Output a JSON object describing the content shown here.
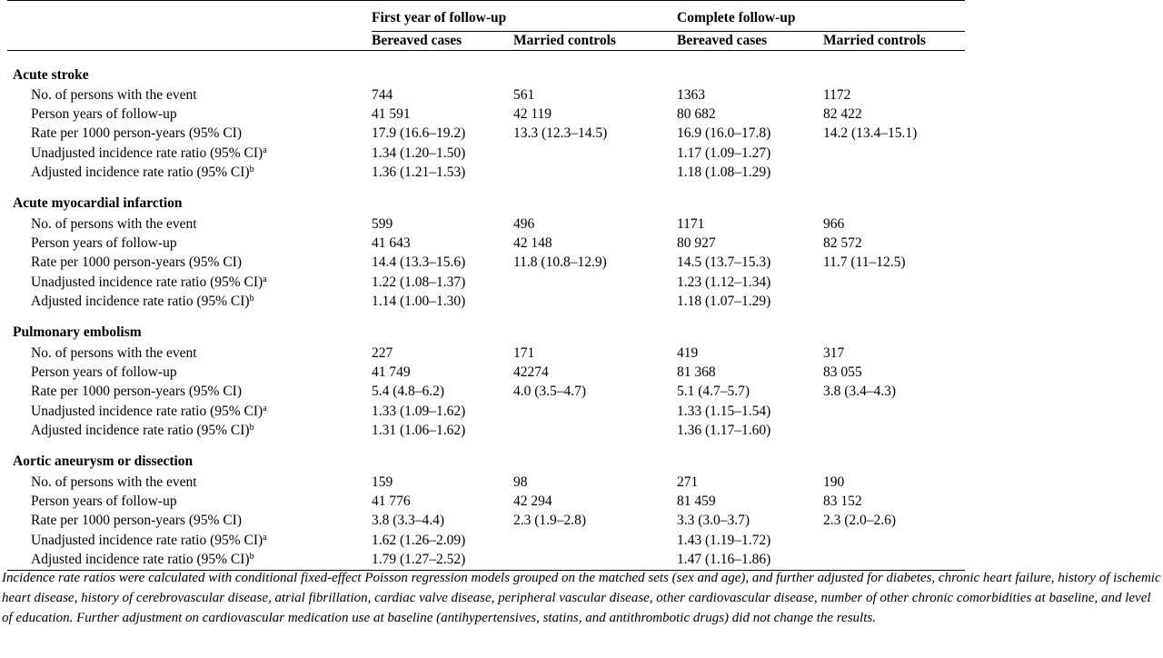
{
  "columns": {
    "group1": "First year of follow-up",
    "group2": "Complete follow-up",
    "bereaved": "Bereaved cases",
    "married": "Married controls"
  },
  "sections": [
    {
      "title": "Acute stroke",
      "rows": [
        {
          "label": "No. of persons with the event",
          "sup": "",
          "v": [
            "744",
            "561",
            "1363",
            "1172"
          ]
        },
        {
          "label": "Person years of follow-up",
          "sup": "",
          "v": [
            "41 591",
            "42 119",
            "80 682",
            "82 422"
          ]
        },
        {
          "label": "Rate per 1000 person-years (95% CI)",
          "sup": "",
          "v": [
            "17.9 (16.6–19.2)",
            "13.3 (12.3–14.5)",
            "16.9 (16.0–17.8)",
            "14.2 (13.4–15.1)"
          ]
        },
        {
          "label": "Unadjusted incidence rate ratio (95% CI)",
          "sup": "a",
          "v": [
            "1.34 (1.20–1.50)",
            "",
            "1.17 (1.09–1.27)",
            ""
          ]
        },
        {
          "label": "Adjusted incidence rate ratio (95% CI)",
          "sup": "b",
          "v": [
            "1.36 (1.21–1.53)",
            "",
            "1.18 (1.08–1.29)",
            ""
          ]
        }
      ]
    },
    {
      "title": "Acute myocardial infarction",
      "rows": [
        {
          "label": "No. of persons with the event",
          "sup": "",
          "v": [
            "599",
            "496",
            "1171",
            "966"
          ]
        },
        {
          "label": "Person years of follow-up",
          "sup": "",
          "v": [
            "41 643",
            "42 148",
            "80 927",
            "82 572"
          ]
        },
        {
          "label": "Rate per 1000 person-years (95% CI)",
          "sup": "",
          "v": [
            "14.4 (13.3–15.6)",
            "11.8 (10.8–12.9)",
            "14.5 (13.7–15.3)",
            "11.7 (11–12.5)"
          ]
        },
        {
          "label": "Unadjusted incidence rate ratio (95% CI)",
          "sup": "a",
          "v": [
            "1.22 (1.08–1.37)",
            "",
            "1.23 (1.12–1.34)",
            ""
          ]
        },
        {
          "label": "Adjusted incidence rate ratio (95% CI)",
          "sup": "b",
          "v": [
            "1.14 (1.00–1.30)",
            "",
            "1.18 (1.07–1.29)",
            ""
          ]
        }
      ]
    },
    {
      "title": "Pulmonary embolism",
      "rows": [
        {
          "label": "No. of persons with the event",
          "sup": "",
          "v": [
            "227",
            "171",
            "419",
            "317"
          ]
        },
        {
          "label": "Person years of follow-up",
          "sup": "",
          "v": [
            "41 749",
            "42274",
            "81 368",
            "83 055"
          ]
        },
        {
          "label": "Rate per 1000 person-years (95% CI)",
          "sup": "",
          "v": [
            "5.4 (4.8–6.2)",
            "4.0 (3.5–4.7)",
            "5.1 (4.7–5.7)",
            "3.8 (3.4–4.3)"
          ]
        },
        {
          "label": "Unadjusted incidence rate ratio (95% CI)",
          "sup": "a",
          "v": [
            "1.33 (1.09–1.62)",
            "",
            "1.33 (1.15–1.54)",
            ""
          ]
        },
        {
          "label": "Adjusted incidence rate ratio (95% CI)",
          "sup": "b",
          "v": [
            "1.31 (1.06–1.62)",
            "",
            "1.36 (1.17–1.60)",
            ""
          ]
        }
      ]
    },
    {
      "title": "Aortic aneurysm or dissection",
      "rows": [
        {
          "label": "No. of persons with the event",
          "sup": "",
          "v": [
            "159",
            "98",
            "271",
            "190"
          ]
        },
        {
          "label": "Person years of follow-up",
          "sup": "",
          "v": [
            "41 776",
            "42 294",
            "81 459",
            "83 152"
          ]
        },
        {
          "label": "Rate per 1000 person-years (95% CI)",
          "sup": "",
          "v": [
            "3.8 (3.3–4.4)",
            "2.3 (1.9–2.8)",
            "3.3 (3.0–3.7)",
            "2.3 (2.0–2.6)"
          ]
        },
        {
          "label": "Unadjusted incidence rate ratio (95% CI)",
          "sup": "a",
          "v": [
            "1.62 (1.26–2.09)",
            "",
            "1.43 (1.19–1.72)",
            ""
          ]
        },
        {
          "label": "Adjusted incidence rate ratio (95% CI)",
          "sup": "b",
          "v": [
            "1.79 (1.27–2.52)",
            "",
            "1.47 (1.16–1.86)",
            ""
          ]
        }
      ]
    }
  ],
  "footnote": "Incidence rate ratios were calculated with conditional fixed-effect Poisson regression models grouped on the matched sets (sex and age), and further adjusted for diabetes, chronic heart failure, history of ischemic heart disease, history of cerebrovascular disease, atrial fibrillation, cardiac valve disease, peripheral vascular disease, other cardiovascular disease, number of other chronic comorbidities at baseline, and level of education. Further adjustment on cardiovascular medication use at baseline (antihypertensives, statins, and antithrombotic drugs) did not change the results."
}
